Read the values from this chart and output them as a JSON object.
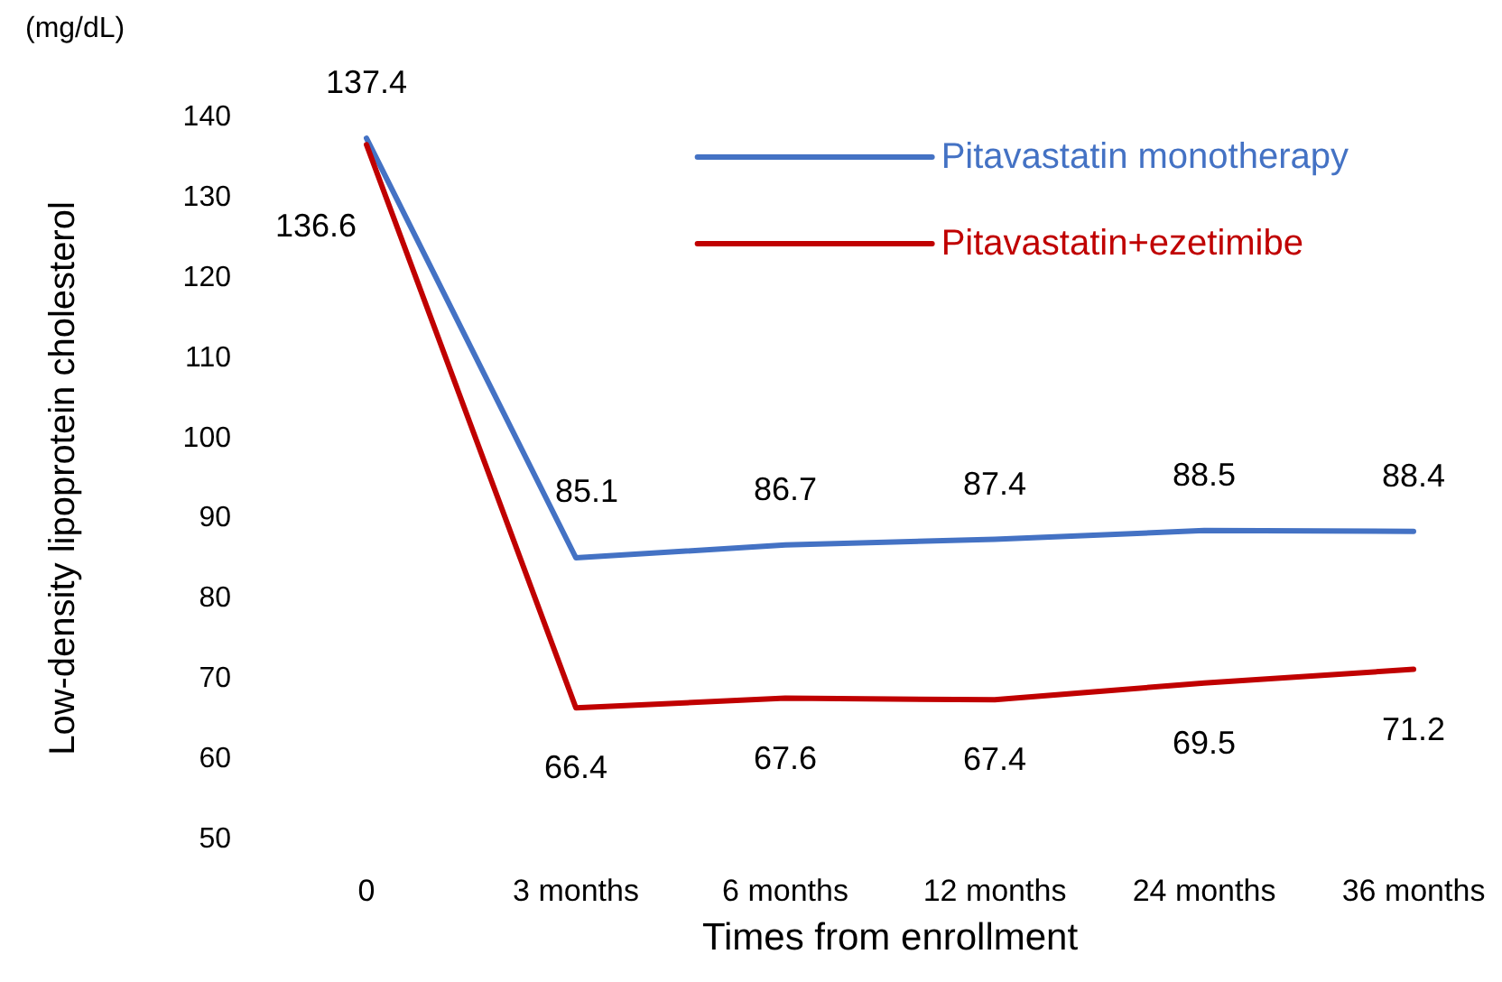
{
  "chart_data": {
    "type": "line",
    "xlabel": "Times from enrollment",
    "ylabel": "Low-density lipoprotein cholesterol",
    "annotations": [
      "(mg/dL)"
    ],
    "categories": [
      "0",
      "3 months",
      "6 months",
      "12 months",
      "24 months",
      "36 months"
    ],
    "series": [
      {
        "name": "Pitavastatin monotherapy",
        "color": "#4472c4",
        "values": [
          137.4,
          85.1,
          86.7,
          87.4,
          88.5,
          88.4
        ]
      },
      {
        "name": "Pitavastatin+ezetimibe",
        "color": "#c00000",
        "values": [
          136.6,
          66.4,
          67.6,
          67.4,
          69.5,
          71.2
        ]
      }
    ],
    "ylim": [
      50,
      140
    ],
    "yticks": [
      50,
      60,
      70,
      80,
      90,
      100,
      110,
      120,
      130,
      140
    ],
    "grid": false,
    "legend": "top right",
    "marker": "none",
    "line_style": "solid",
    "data_labels": true
  }
}
